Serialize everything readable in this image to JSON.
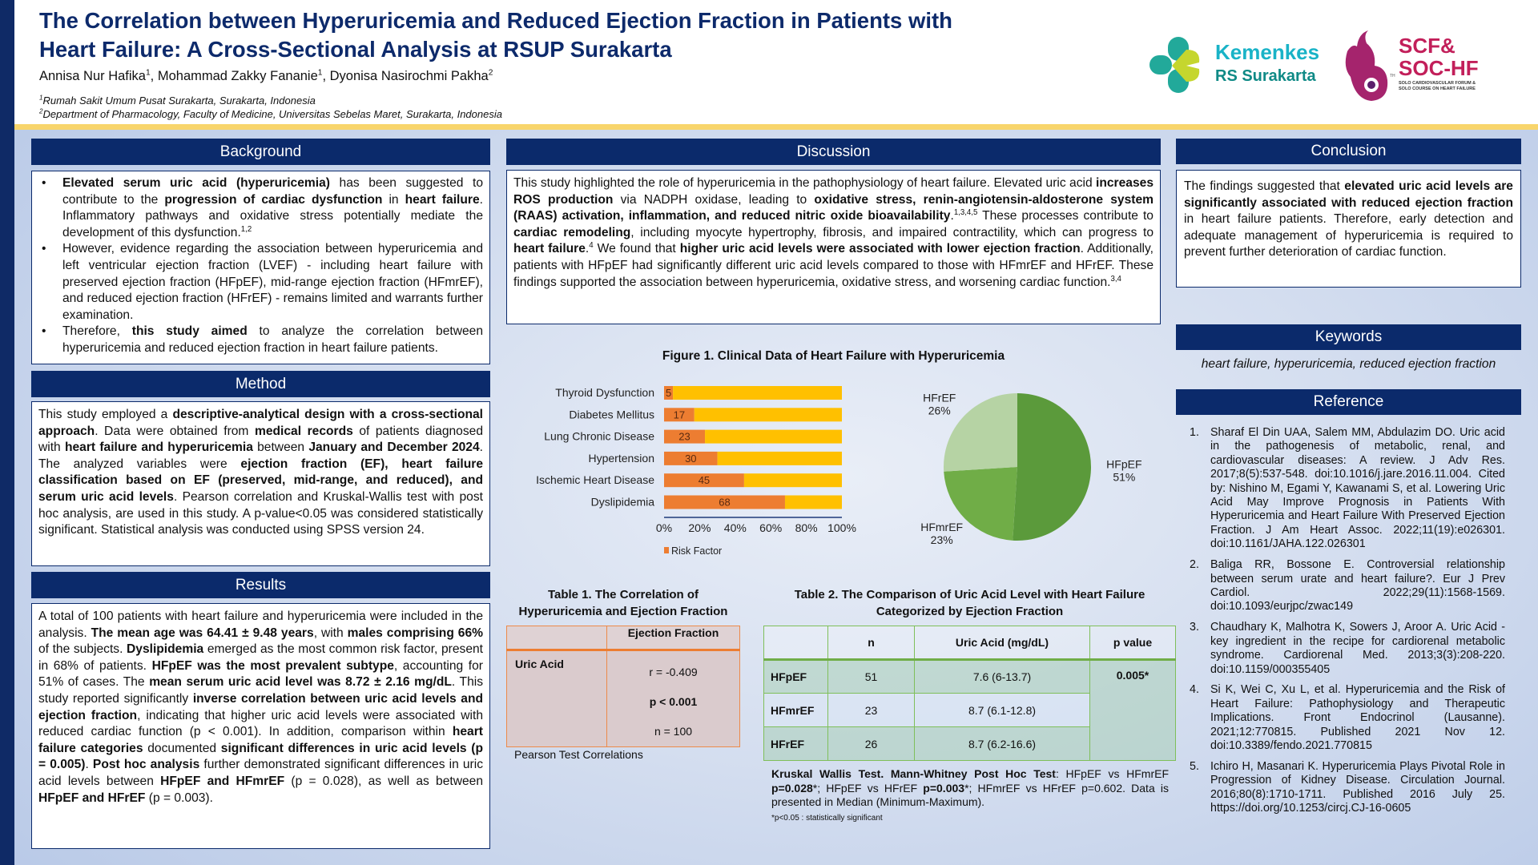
{
  "header": {
    "title_line1": "The Correlation between Hyperuricemia and Reduced Ejection Fraction in Patients with",
    "title_line2": "Heart Failure: A Cross-Sectional Analysis at RSUP Surakarta",
    "authors": [
      {
        "name": "Annisa Nur Hafika",
        "sup": "1"
      },
      {
        "name": ", Mohammad Zakky Fananie",
        "sup": "1"
      },
      {
        "name": ", Dyonisa Nasirochmi Pakha",
        "sup": "2"
      }
    ],
    "affiliations": [
      {
        "sup": "1",
        "text": "Rumah Sakit Umum Pusat Surakarta, Surakarta, Indonesia"
      },
      {
        "sup": "2",
        "text": "Department of Pharmacology, Faculty of Medicine, Universitas Sebelas Maret, Surakarta, Indonesia"
      }
    ],
    "logos": {
      "kemenkes_line1": "Kemenkes",
      "kemenkes_line2": "RS Surakarta",
      "scf_line1": "SCF&",
      "scf_line2": "SOC-HF",
      "scf_sub1": "SOLO CARDIOVASCULAR FORUM &",
      "scf_sub2": "SOLO COURSE ON HEART FAILURE",
      "scf_th": "TH"
    }
  },
  "colors": {
    "navy": "#0b2a6b",
    "yellow_band": "#f8d56c",
    "risk_orange": "#ed7d31",
    "remainder_yellow": "#ffc000",
    "hfpef": "#5b9a3b",
    "hfmref": "#70ad47",
    "hfref": "#b6d3a4"
  },
  "background": {
    "heading": "Background",
    "bullets": [
      [
        {
          "t": "Elevated serum uric acid (hyperuricemia)",
          "b": 1
        },
        {
          "t": " has been suggested to contribute to the "
        },
        {
          "t": "progression of cardiac dysfunction",
          "b": 1
        },
        {
          "t": " in "
        },
        {
          "t": "heart failure",
          "b": 1
        },
        {
          "t": ". Inflammatory pathways and oxidative stress potentially mediate the development of this dysfunction."
        },
        {
          "t": "1,2",
          "s": 1
        }
      ],
      [
        {
          "t": "However, evidence regarding the association between hyperuricemia and left ventricular ejection fraction (LVEF) - including heart failure with preserved ejection fraction (HFpEF), mid-range ejection fraction (HFmrEF), and reduced ejection fraction (HFrEF) - remains limited and warrants further examination."
        }
      ],
      [
        {
          "t": "Therefore, "
        },
        {
          "t": "this study aimed",
          "b": 1
        },
        {
          "t": " to analyze the correlation between hyperuricemia and reduced ejection fraction in heart failure patients."
        }
      ]
    ]
  },
  "method": {
    "heading": "Method",
    "text": [
      {
        "t": "This study employed a "
      },
      {
        "t": "descriptive-analytical design with a cross-sectional approach",
        "b": 1
      },
      {
        "t": ". Data were obtained from "
      },
      {
        "t": "medical records",
        "b": 1
      },
      {
        "t": " of patients diagnosed with "
      },
      {
        "t": "heart failure and hyperuricemia",
        "b": 1
      },
      {
        "t": " between "
      },
      {
        "t": "January and December 2024",
        "b": 1
      },
      {
        "t": ". The analyzed variables were "
      },
      {
        "t": "ejection fraction (EF), heart failure classification based on EF (preserved, mid-range, and reduced), and serum uric acid levels",
        "b": 1
      },
      {
        "t": ". Pearson correlation and Kruskal-Wallis test with post hoc analysis, are used in this study. A p-value<0.05 was considered statistically significant. Statistical analysis was conducted using SPSS version 24."
      }
    ]
  },
  "results": {
    "heading": "Results",
    "text": [
      {
        "t": "A total of 100 patients with heart failure and hyperuricemia were included in the analysis. "
      },
      {
        "t": "The mean age was 64.41 ± 9.48 years",
        "b": 1
      },
      {
        "t": ", with "
      },
      {
        "t": "males comprising 66%",
        "b": 1
      },
      {
        "t": " of the subjects. "
      },
      {
        "t": "Dyslipidemia",
        "b": 1
      },
      {
        "t": " emerged as the most common risk factor, present in 68% of patients. "
      },
      {
        "t": "HFpEF was the most prevalent subtype",
        "b": 1
      },
      {
        "t": ", accounting for 51% of cases. The "
      },
      {
        "t": "mean serum uric acid level was 8.72 ± 2.16 mg/dL",
        "b": 1
      },
      {
        "t": ". This study reported significantly "
      },
      {
        "t": "inverse correlation between uric acid levels and ejection fraction",
        "b": 1
      },
      {
        "t": ", indicating that higher uric acid levels were associated with reduced cardiac function (p < 0.001). In addition, comparison within "
      },
      {
        "t": "heart failure categories",
        "b": 1
      },
      {
        "t": " documented "
      },
      {
        "t": "significant differences in uric acid levels (p = 0.005)",
        "b": 1
      },
      {
        "t": ". "
      },
      {
        "t": "Post hoc analysis",
        "b": 1
      },
      {
        "t": " further demonstrated significant differences in uric acid levels between "
      },
      {
        "t": "HFpEF and HFmrEF",
        "b": 1
      },
      {
        "t": " (p = 0.028), as well as between "
      },
      {
        "t": "HFpEF and HFrEF",
        "b": 1
      },
      {
        "t": " (p = 0.003)."
      }
    ]
  },
  "discussion": {
    "heading": "Discussion",
    "text": [
      {
        "t": "This study highlighted the role of hyperuricemia in the pathophysiology of heart failure. Elevated uric acid "
      },
      {
        "t": "increases ROS production",
        "b": 1
      },
      {
        "t": " via NADPH oxidase, leading to "
      },
      {
        "t": "oxidative stress, renin-angiotensin-aldosterone system (RAAS) activation, inflammation, and reduced nitric oxide bioavailability",
        "b": 1
      },
      {
        "t": "."
      },
      {
        "t": "1,3,4,5",
        "s": 1
      },
      {
        "t": " These processes contribute to "
      },
      {
        "t": "cardiac remodeling",
        "b": 1
      },
      {
        "t": ", including myocyte hypertrophy, fibrosis, and impaired contractility, which can progress to "
      },
      {
        "t": "heart failure",
        "b": 1
      },
      {
        "t": "."
      },
      {
        "t": "4",
        "s": 1
      },
      {
        "t": " We found that "
      },
      {
        "t": "higher uric acid levels were associated with lower ejection fraction",
        "b": 1
      },
      {
        "t": ". Additionally, patients with HFpEF had significantly different uric acid levels compared to those with HFmrEF and HFrEF. These findings supported the association between hyperuricemia, oxidative stress, and worsening cardiac function."
      },
      {
        "t": "3,4",
        "s": 1
      }
    ]
  },
  "figure1": {
    "title": "Figure 1. Clinical Data of Heart Failure with Hyperuricemia"
  },
  "chart_data": [
    {
      "type": "bar",
      "orientation": "horizontal",
      "stacked_percent": true,
      "categories": [
        "Thyroid Dysfunction",
        "Diabetes Mellitus",
        "Lung Chronic Disease",
        "Hypertension",
        "Ischemic Heart Disease",
        "Dyslipidemia"
      ],
      "series": [
        {
          "name": "Risk Factor",
          "values": [
            5,
            17,
            23,
            30,
            45,
            68
          ],
          "data_labels": true
        }
      ],
      "xlim": [
        0,
        100
      ],
      "xticks": [
        "0%",
        "20%",
        "40%",
        "60%",
        "80%",
        "100%"
      ],
      "legend": "bottom-left",
      "legend_entries": [
        "Risk Factor"
      ]
    },
    {
      "type": "pie",
      "labels": [
        "HFpEF",
        "HFmrEF",
        "HFrEF"
      ],
      "values": [
        51,
        23,
        26
      ],
      "value_labels": [
        "51%",
        "23%",
        "26%"
      ]
    }
  ],
  "table1": {
    "caption": "Table 1. The Correlation of Hyperuricemia and Ejection Fraction",
    "col_header": "Ejection Fraction",
    "row_label": "Uric Acid",
    "r": "r = -0.409",
    "p": "p < 0.001",
    "n": "n = 100",
    "note": "Pearson Test Correlations"
  },
  "table2": {
    "caption": "Table 2. The Comparison of Uric Acid Level with Heart Failure Categorized by Ejection Fraction",
    "headers": [
      "",
      "n",
      "Uric Acid (mg/dL)",
      "p value"
    ],
    "rows": [
      {
        "label": "HFpEF",
        "n": "51",
        "ua": "7.6 (6-13.7)"
      },
      {
        "label": "HFmrEF",
        "n": "23",
        "ua": "8.7 (6.1-12.8)"
      },
      {
        "label": "HFrEF",
        "n": "26",
        "ua": "8.7 (6.2-16.6)"
      }
    ],
    "p_value": "0.005*",
    "note": [
      {
        "t": "Kruskal Wallis Test. Mann-Whitney Post Hoc Test",
        "b": 1
      },
      {
        "t": ": HFpEF vs HFmrEF "
      },
      {
        "t": "p=0.028",
        "b": 1
      },
      {
        "t": "*; HFpEF vs HFrEF "
      },
      {
        "t": "p=0.003",
        "b": 1
      },
      {
        "t": "*; HFmrEF vs HFrEF p=0.602. Data is presented in Median (Minimum-Maximum)."
      }
    ],
    "footnote": "*p<0.05 : statistically significant"
  },
  "conclusion": {
    "heading": "Conclusion",
    "text": [
      {
        "t": "The findings suggested that "
      },
      {
        "t": "elevated uric acid levels are significantly associated with reduced ejection fraction",
        "b": 1
      },
      {
        "t": " in heart failure patients. Therefore, early detection and adequate management of hyperuricemia is required to prevent further deterioration of cardiac function."
      }
    ]
  },
  "keywords": {
    "heading": "Keywords",
    "text": "heart failure, hyperuricemia, reduced ejection fraction"
  },
  "references": {
    "heading": "Reference",
    "items": [
      {
        "n": "1.",
        "text": "Sharaf El Din UAA, Salem MM, Abdulazim DO. Uric acid in the pathogenesis of metabolic, renal, and cardiovascular diseases: A review. J Adv Res. 2017;8(5):537-548. doi:10.1016/j.jare.2016.11.004. Cited by: Nishino M, Egami Y, Kawanami S, et al. Lowering Uric Acid May Improve Prognosis in Patients With Hyperuricemia and Heart Failure With Preserved Ejection Fraction. J Am Heart Assoc. 2022;11(19):e026301. doi:10.1161/JAHA.122.026301"
      },
      {
        "n": "2.",
        "text": "Baliga RR, Bossone E. Controversial relationship between serum urate and heart failure?. Eur J Prev Cardiol. 2022;29(11):1568-1569. doi:10.1093/eurjpc/zwac149"
      },
      {
        "n": "3.",
        "text": "Chaudhary K, Malhotra K, Sowers J, Aroor A. Uric Acid - key ingredient in the recipe for cardiorenal metabolic syndrome. Cardiorenal Med. 2013;3(3):208-220. doi:10.1159/000355405"
      },
      {
        "n": "4.",
        "text": "Si K, Wei C, Xu L, et al. Hyperuricemia and the Risk of Heart Failure: Pathophysiology and Therapeutic Implications. Front Endocrinol (Lausanne). 2021;12:770815. Published 2021 Nov 12. doi:10.3389/fendo.2021.770815"
      },
      {
        "n": "5.",
        "text": "Ichiro H, Masanari K. Hyperuricemia Plays Pivotal Role in Progression of Kidney Disease. Circulation Journal. 2016;80(8):1710-1711. Published 2016 July 25. https://doi.org/10.1253/circj.CJ-16-0605"
      }
    ]
  }
}
